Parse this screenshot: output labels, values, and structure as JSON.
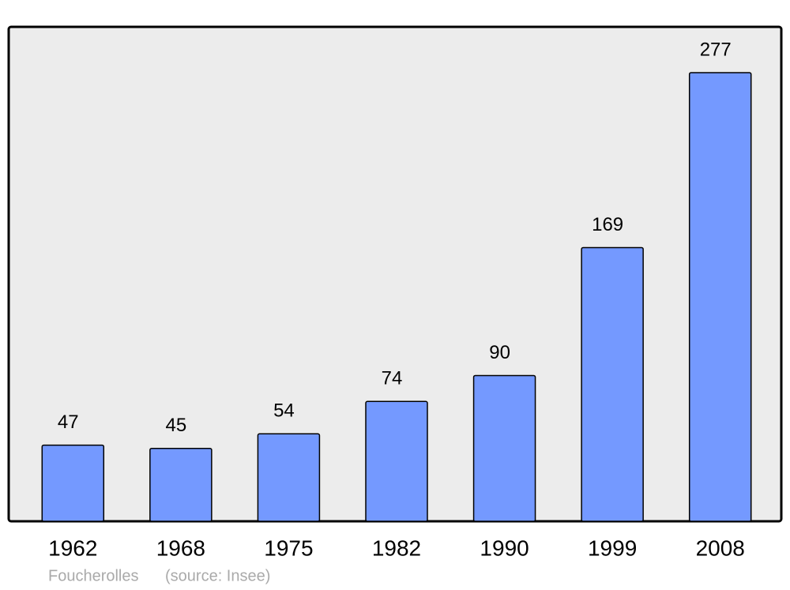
{
  "chart_data": {
    "type": "bar",
    "categories": [
      "1962",
      "1968",
      "1975",
      "1982",
      "1990",
      "1999",
      "2008"
    ],
    "values": [
      47,
      45,
      54,
      74,
      90,
      169,
      277
    ],
    "color": "#7499ff",
    "caption": "Foucherolles",
    "source": "(source: Insee)"
  }
}
